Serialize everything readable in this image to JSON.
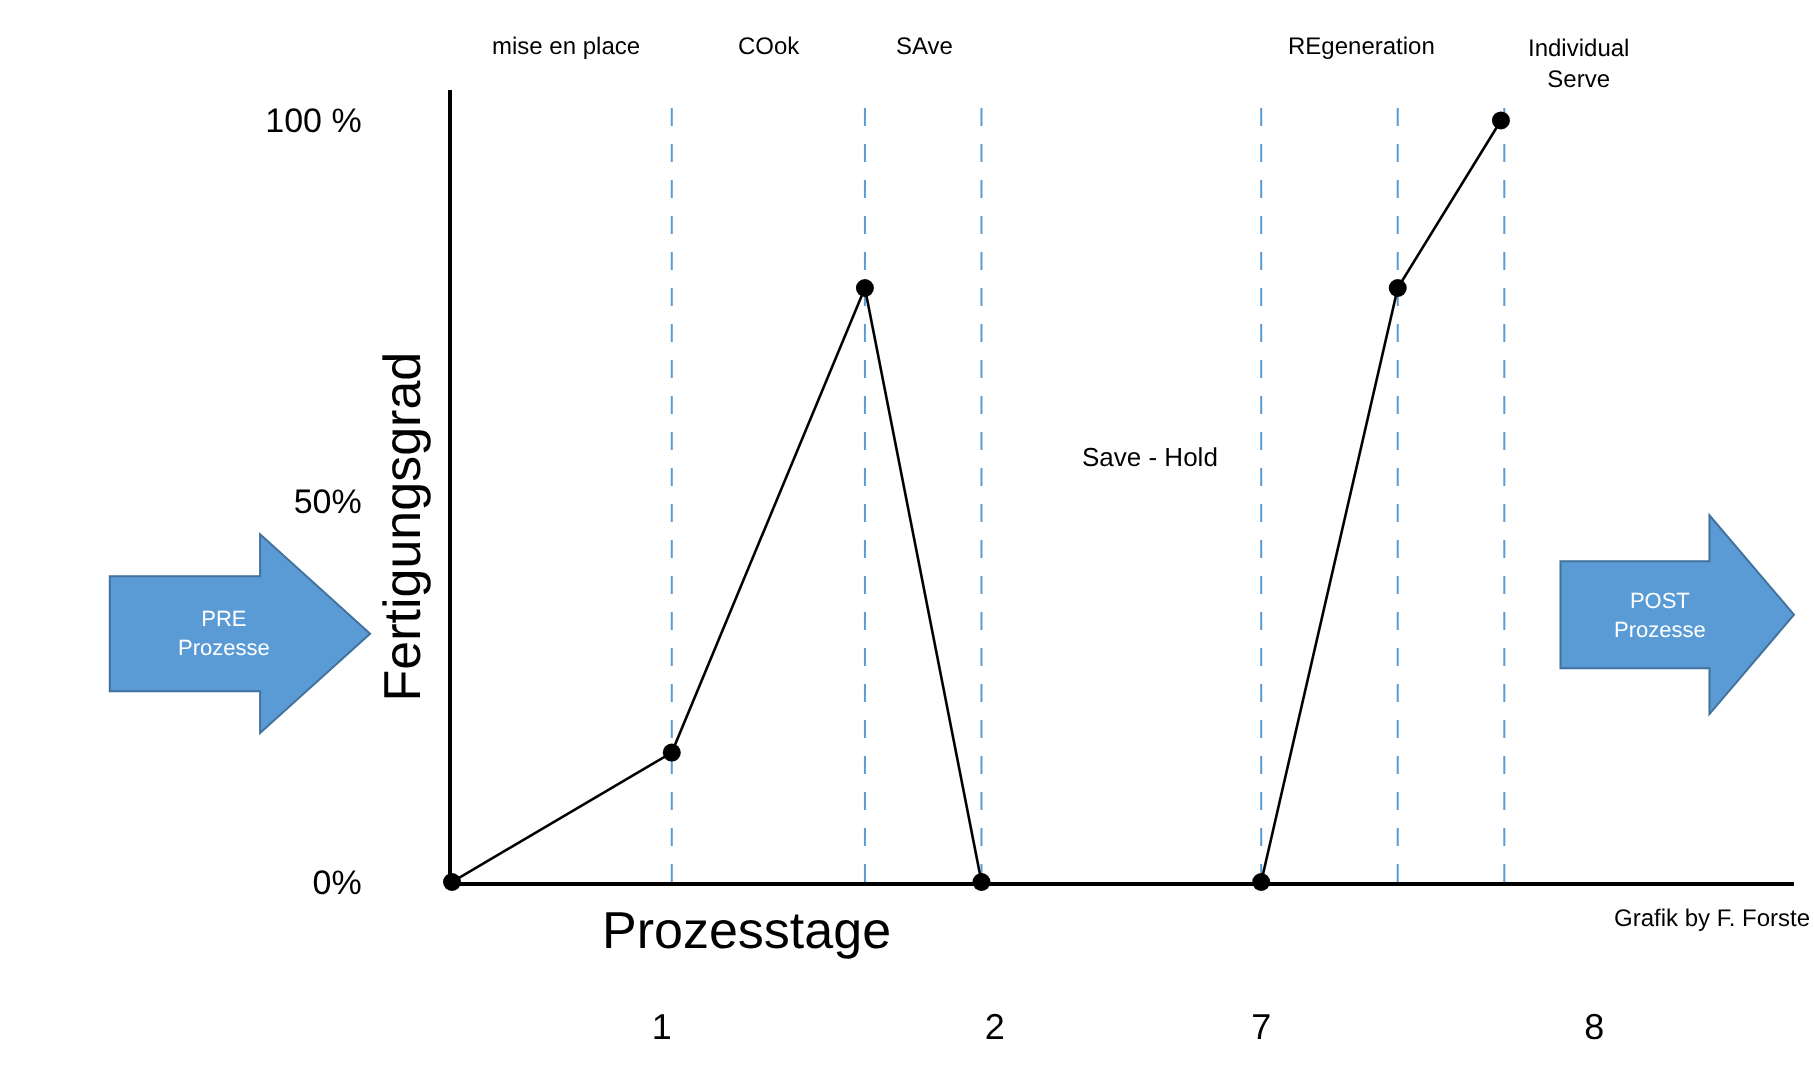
{
  "chart_data": [
    {
      "type": "line",
      "xlabel": "Prozesstage",
      "ylabel": "Fertigungsgrad",
      "x": [
        0.37,
        1.03,
        1.61,
        1.96
      ],
      "series": [
        {
          "color": "#000000",
          "values": [
            0,
            17,
            78,
            0
          ]
        }
      ],
      "marker": "circle",
      "line_style": "solid",
      "xlim": [
        0.37,
        2.4
      ],
      "xticks": [
        1,
        2
      ],
      "ylim": [
        0,
        104
      ],
      "yticks": [
        {
          "value": 0,
          "label": "0%"
        },
        {
          "value": 50,
          "label": "50%"
        },
        {
          "value": 100,
          "label": "100 %"
        }
      ],
      "ref_lines": [
        {
          "axis": "x",
          "value": 1.03,
          "color": "#5b9bd5",
          "line_style": "dashed"
        },
        {
          "axis": "x",
          "value": 1.61,
          "color": "#5b9bd5",
          "line_style": "dashed"
        },
        {
          "axis": "x",
          "value": 1.96,
          "color": "#5b9bd5",
          "line_style": "dashed"
        }
      ],
      "annotations": [
        "PRE\nProzesse",
        "POST\nProzesse",
        "Grafik by F. Forste",
        "mise en place",
        "COok",
        "SAve",
        "REgeneration",
        "Individual\nServe",
        "Save - Hold"
      ]
    },
    {
      "type": "line",
      "x": [
        7.0,
        7.41,
        7.72
      ],
      "series": [
        {
          "color": "#000000",
          "values": [
            0,
            78,
            100
          ]
        }
      ],
      "marker": "circle",
      "line_style": "solid",
      "xlim": [
        6.6,
        8.6
      ],
      "xticks": [
        7,
        8
      ],
      "ylim": [
        0,
        104
      ],
      "tick_labels": "x",
      "ref_lines": [
        {
          "axis": "x",
          "value": 7.0,
          "color": "#5b9bd5",
          "line_style": "dashed"
        },
        {
          "axis": "x",
          "value": 7.41,
          "color": "#5b9bd5",
          "line_style": "dashed"
        },
        {
          "axis": "x",
          "value": 7.73,
          "color": "#5b9bd5",
          "line_style": "dashed"
        }
      ]
    }
  ]
}
